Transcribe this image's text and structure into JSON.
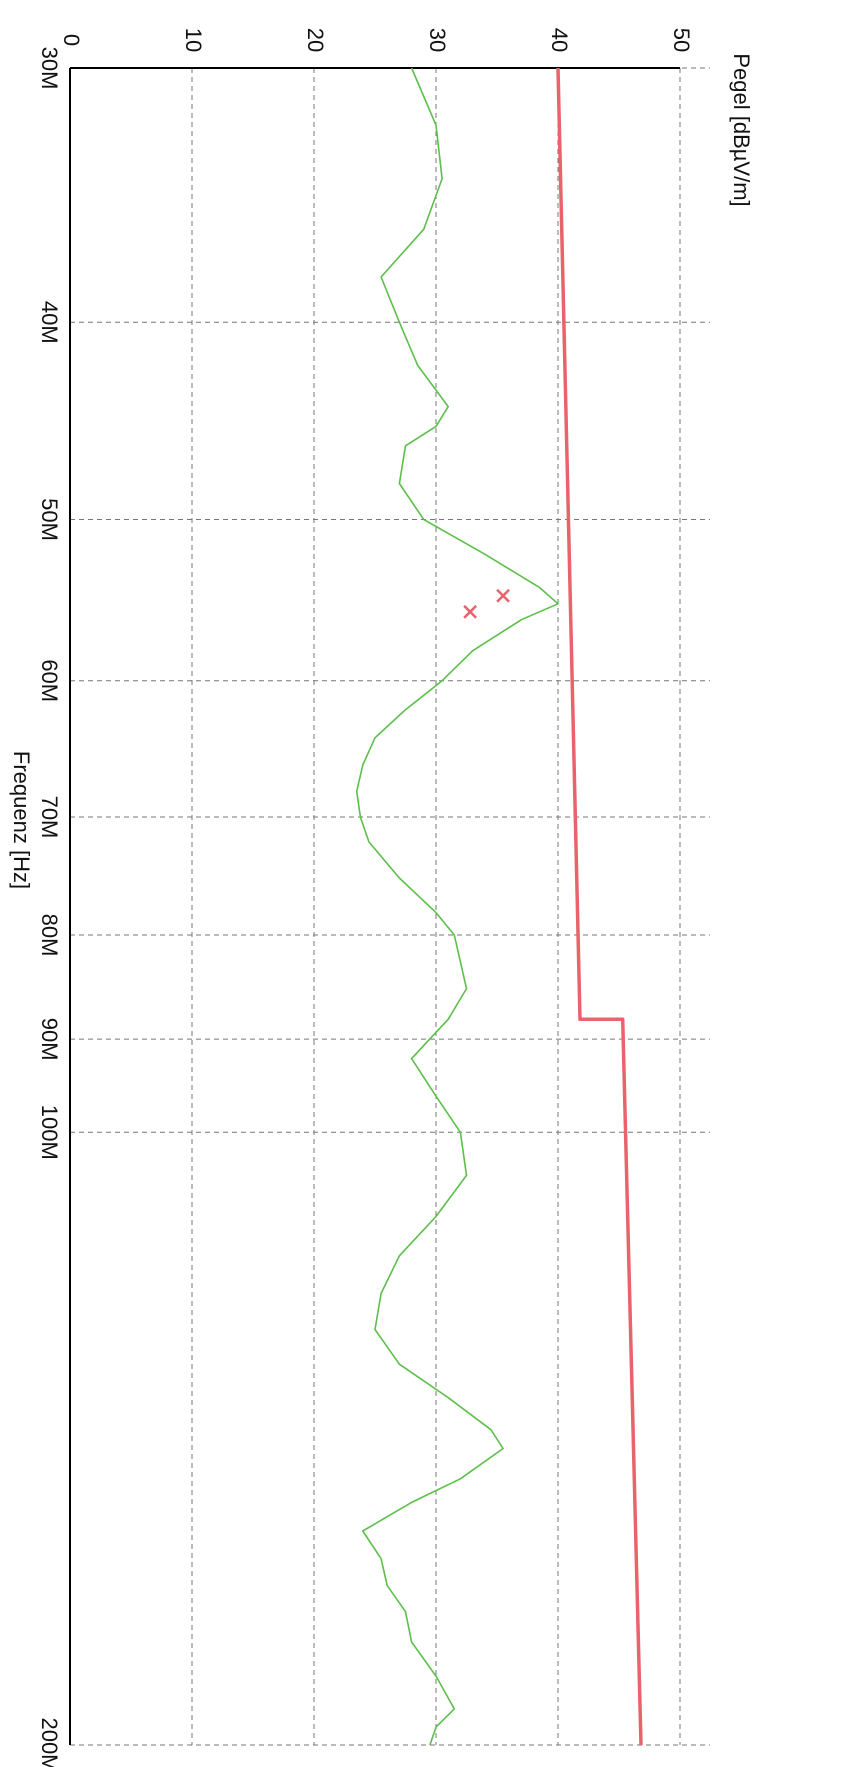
{
  "chart_data": {
    "type": "line",
    "xlabel": "Frequenz [Hz]",
    "ylabel": "Pegel [dBµV/m]",
    "xscale": "log",
    "xlim": [
      30000000,
      200000000
    ],
    "ylim": [
      0,
      50
    ],
    "xticks": [
      {
        "value": 30000000,
        "label": "30M"
      },
      {
        "value": 40000000,
        "label": "40M"
      },
      {
        "value": 50000000,
        "label": "50M"
      },
      {
        "value": 60000000,
        "label": "60M"
      },
      {
        "value": 70000000,
        "label": "70M"
      },
      {
        "value": 80000000,
        "label": "80M"
      },
      {
        "value": 90000000,
        "label": "90M"
      },
      {
        "value": 100000000,
        "label": "100M"
      },
      {
        "value": 200000000,
        "label": "200M"
      }
    ],
    "yticks": [
      0,
      10,
      20,
      30,
      40,
      50
    ],
    "grid": true,
    "series": [
      {
        "color": "#5cbf4a",
        "x": [
          30000000,
          32000000,
          34000000,
          36000000,
          38000000,
          40000000,
          42000000,
          44000000,
          45000000,
          46000000,
          48000000,
          50000000,
          52000000,
          54000000,
          55000000,
          56000000,
          58000000,
          60000000,
          62000000,
          64000000,
          66000000,
          68000000,
          70000000,
          72000000,
          75000000,
          78000000,
          80000000,
          85000000,
          88000000,
          92000000,
          96000000,
          100000000,
          105000000,
          110000000,
          115000000,
          120000000,
          125000000,
          130000000,
          135000000,
          140000000,
          143000000,
          148000000,
          152000000,
          157000000,
          162000000,
          167000000,
          172000000,
          178000000,
          185000000,
          192000000,
          196000000,
          200000000
        ],
        "values": [
          28,
          30,
          30.5,
          29,
          25.5,
          27,
          28.5,
          31,
          30,
          27.5,
          27,
          29,
          34,
          38.5,
          40,
          37,
          33,
          30.5,
          27.5,
          25,
          24,
          23.5,
          23.8,
          24.5,
          27,
          30,
          31.5,
          32.5,
          31,
          28,
          30,
          32,
          32.5,
          30,
          27,
          25.5,
          25,
          27,
          31,
          34.5,
          35.5,
          32,
          28,
          24,
          25.5,
          26,
          27.5,
          28,
          30,
          31.5,
          30,
          29.5
        ]
      },
      {
        "color": "#e8636b",
        "x": [
          30000000,
          88000000,
          88000000,
          200000000
        ],
        "values": [
          40,
          41.8,
          45.3,
          46.8
        ]
      }
    ],
    "markers": {
      "color": "#e8636b",
      "x": [
        54500000,
        55500000
      ],
      "values": [
        35.5,
        32.8
      ]
    }
  }
}
